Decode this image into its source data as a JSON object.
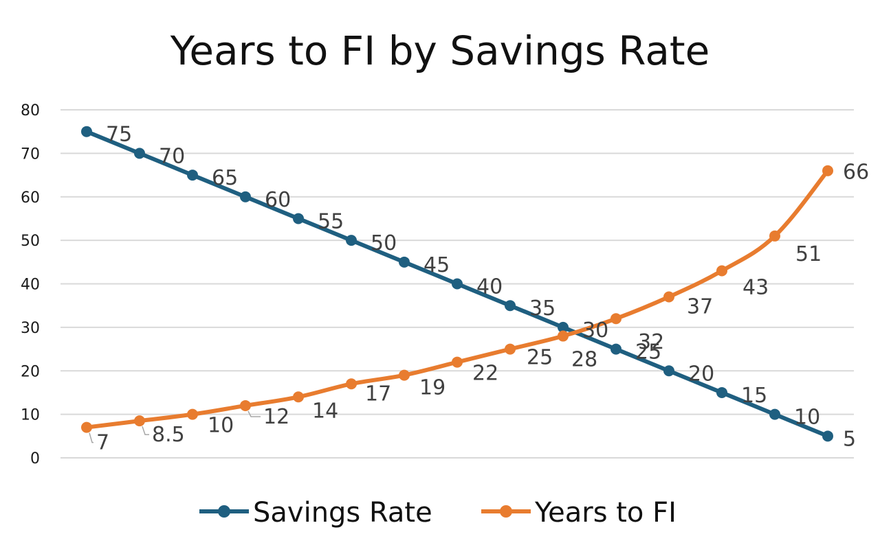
{
  "chart_data": {
    "type": "line",
    "title": "Years to FI by Savings Rate",
    "xlabel": "",
    "ylabel": "",
    "ylim": [
      0,
      80
    ],
    "yticks": [
      0,
      10,
      20,
      30,
      40,
      50,
      60,
      70,
      80
    ],
    "grid": true,
    "legend_position": "bottom",
    "x": [
      1,
      2,
      3,
      4,
      5,
      6,
      7,
      8,
      9,
      10,
      11,
      12,
      13,
      14,
      15
    ],
    "series": [
      {
        "name": "Savings Rate",
        "color": "#1f5f80",
        "values": [
          75,
          70,
          65,
          60,
          55,
          50,
          45,
          40,
          35,
          30,
          25,
          20,
          15,
          10,
          5
        ],
        "labels": [
          "75",
          "70",
          "65",
          "60",
          "55",
          "50",
          "45",
          "40",
          "35",
          "30",
          "25",
          "20",
          "15",
          "10",
          "5"
        ]
      },
      {
        "name": "Years to FI",
        "color": "#e87c2f",
        "values": [
          7,
          8.5,
          10,
          12,
          14,
          17,
          19,
          22,
          25,
          28,
          32,
          37,
          43,
          51,
          66
        ],
        "labels": [
          "7",
          "8.5",
          "10",
          "12",
          "14",
          "17",
          "19",
          "22",
          "25",
          "28",
          "32",
          "37",
          "43",
          "51",
          "66"
        ]
      }
    ]
  }
}
